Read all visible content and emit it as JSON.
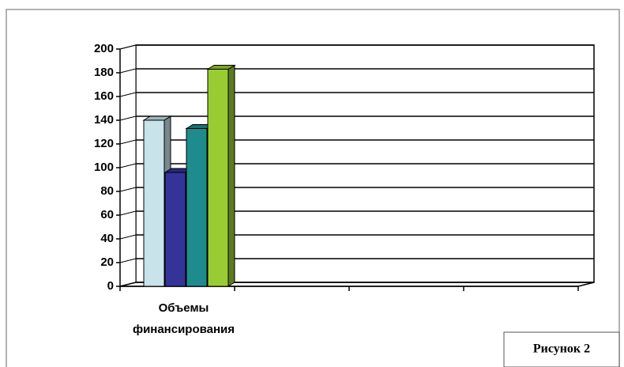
{
  "chart_data": {
    "type": "bar3d",
    "categories": [
      "Объемы финансирования",
      null,
      null,
      null
    ],
    "series": [
      {
        "color": "#c8e3ea",
        "values": [
          140,
          null,
          null,
          null
        ]
      },
      {
        "color": "#333399",
        "values": [
          96,
          null,
          null,
          null
        ]
      },
      {
        "color": "#1e8c8c",
        "values": [
          133,
          null,
          null,
          null
        ]
      },
      {
        "color": "#99cc33",
        "values": [
          183,
          null,
          null,
          null
        ]
      }
    ],
    "ylim": [
      0,
      200
    ],
    "yticks": [
      0,
      20,
      40,
      60,
      80,
      100,
      120,
      140,
      160,
      180,
      200
    ],
    "grid": true,
    "annotation": "Рисунок 2"
  }
}
